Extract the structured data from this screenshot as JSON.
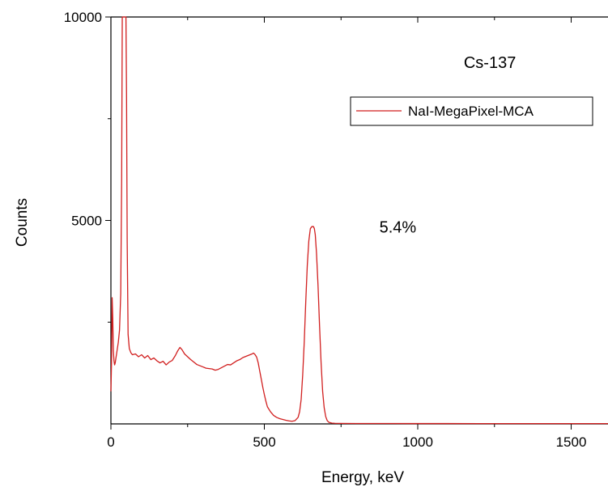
{
  "chart_data": {
    "type": "line",
    "xlabel": "Energy, keV",
    "ylabel": "Counts",
    "xlim": [
      0,
      1620
    ],
    "ylim": [
      0,
      10000
    ],
    "x_ticks": [
      0,
      500,
      1000,
      1500
    ],
    "y_ticks": [
      5000,
      10000
    ],
    "x_tick_labels": [
      "0",
      "500",
      "1000",
      "1500"
    ],
    "y_tick_labels": [
      "5000",
      "10000"
    ],
    "grid": false,
    "legend_position": "top-right",
    "line_color": "#d11f1f",
    "annotations": [
      {
        "text": "Cs-137",
        "x": 1150,
        "y": 8750
      },
      {
        "text": "5.4%",
        "x": 875,
        "y": 4700
      }
    ],
    "series": [
      {
        "name": "NaI-MegaPixel-MCA",
        "x": [
          0,
          2,
          4,
          6,
          8,
          10,
          12,
          14,
          17,
          20,
          24,
          28,
          32,
          35,
          37,
          39,
          41,
          43,
          45,
          47,
          49,
          51,
          53,
          56,
          60,
          65,
          70,
          80,
          90,
          100,
          110,
          120,
          130,
          140,
          150,
          160,
          170,
          180,
          190,
          200,
          210,
          218,
          225,
          232,
          240,
          250,
          260,
          270,
          280,
          290,
          300,
          310,
          320,
          330,
          340,
          350,
          360,
          370,
          380,
          390,
          400,
          410,
          420,
          430,
          440,
          450,
          460,
          465,
          470,
          475,
          480,
          485,
          490,
          495,
          500,
          505,
          510,
          520,
          530,
          540,
          550,
          560,
          570,
          580,
          590,
          600,
          610,
          615,
          620,
          625,
          630,
          635,
          640,
          645,
          650,
          655,
          660,
          663,
          666,
          670,
          675,
          680,
          685,
          690,
          695,
          700,
          705,
          710,
          720,
          730,
          750,
          800,
          900,
          1000,
          1100,
          1200,
          1300,
          1400,
          1500,
          1620
        ],
        "y": [
          800,
          1500,
          3100,
          2600,
          1800,
          1550,
          1450,
          1500,
          1650,
          1800,
          2000,
          2300,
          3200,
          6000,
          10000,
          10000,
          10000,
          10000,
          10000,
          10000,
          10000,
          8000,
          4500,
          2200,
          1850,
          1750,
          1700,
          1720,
          1650,
          1700,
          1620,
          1680,
          1580,
          1620,
          1550,
          1500,
          1540,
          1450,
          1520,
          1560,
          1680,
          1800,
          1880,
          1820,
          1720,
          1650,
          1580,
          1520,
          1460,
          1430,
          1400,
          1370,
          1360,
          1350,
          1320,
          1340,
          1380,
          1420,
          1460,
          1450,
          1500,
          1550,
          1580,
          1630,
          1660,
          1690,
          1720,
          1740,
          1700,
          1640,
          1500,
          1300,
          1100,
          900,
          720,
          560,
          420,
          300,
          210,
          160,
          130,
          110,
          90,
          75,
          65,
          80,
          160,
          300,
          600,
          1200,
          2000,
          3000,
          3900,
          4500,
          4800,
          4850,
          4850,
          4800,
          4650,
          4200,
          3400,
          2400,
          1500,
          800,
          400,
          180,
          80,
          40,
          20,
          15,
          12,
          10,
          10,
          9,
          9,
          8,
          8,
          8,
          8,
          8
        ]
      }
    ]
  }
}
